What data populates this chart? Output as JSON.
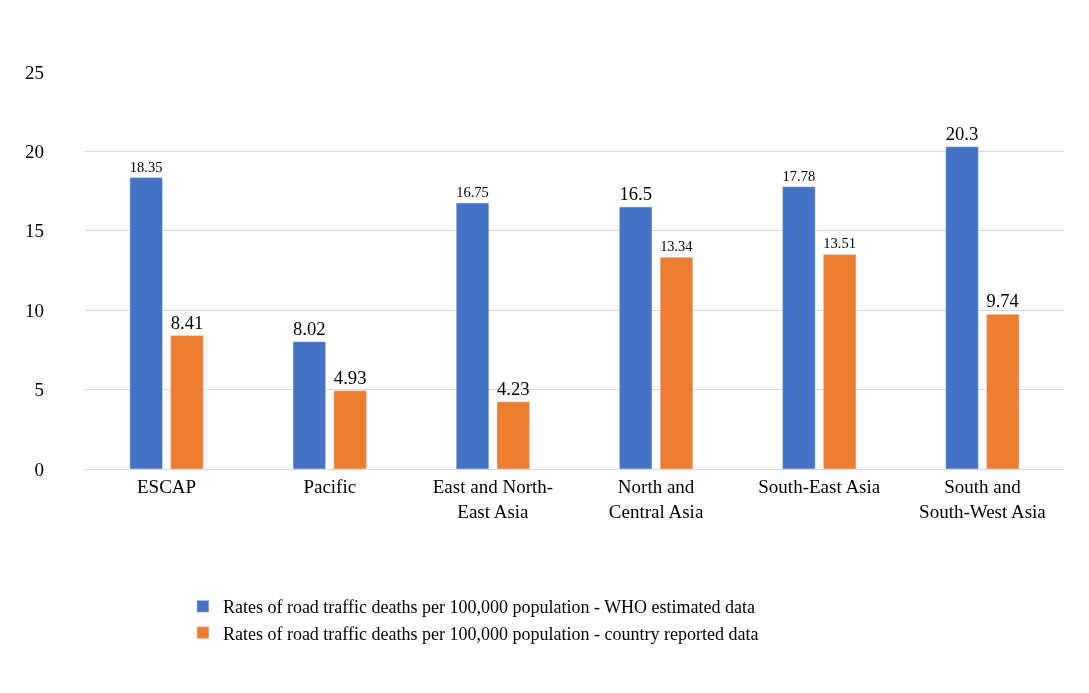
{
  "chart_data": {
    "type": "bar",
    "categories": [
      "ESCAP",
      "Pacific",
      "East and North-East Asia",
      "North and Central Asia",
      "South-East Asia",
      "South and South-West Asia"
    ],
    "series": [
      {
        "name": "Rates of road traffic deaths per 100,000 population - WHO estimated data",
        "color": "#4472c4",
        "values": [
          18.35,
          8.02,
          16.75,
          16.5,
          17.78,
          20.3
        ]
      },
      {
        "name": "Rates of road traffic deaths per 100,000 population - country reported data",
        "color": "#ed7d31",
        "values": [
          8.41,
          4.93,
          4.23,
          13.34,
          13.51,
          9.74
        ]
      }
    ],
    "ylim": [
      0,
      25
    ],
    "yticks": [
      0,
      5,
      10,
      15,
      20,
      25
    ],
    "grid": "y",
    "legend": "bottom",
    "data_labels": true
  }
}
